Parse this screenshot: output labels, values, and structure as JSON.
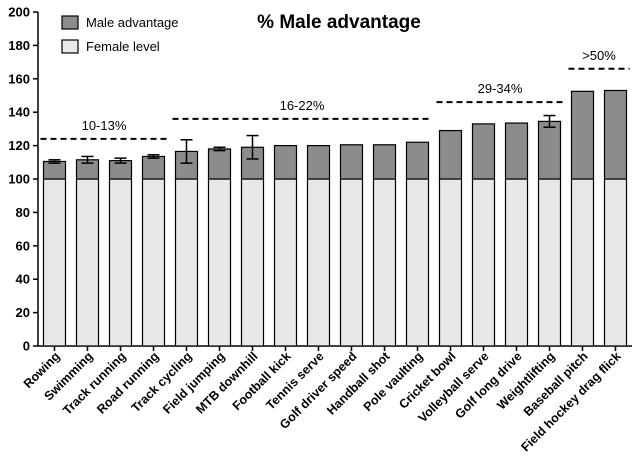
{
  "chart_data": {
    "type": "bar",
    "stacked": true,
    "title": "% Male advantage",
    "ylim": [
      0,
      200
    ],
    "yticks": [
      0,
      20,
      40,
      60,
      80,
      100,
      120,
      140,
      160,
      180,
      200
    ],
    "categories": [
      "Rowing",
      "Swimming",
      "Track running",
      "Road running",
      "Track cycling",
      "Field jumping",
      "MTB downhill",
      "Football kick",
      "Tennis serve",
      "Golf driver speed",
      "Handball shot",
      "Pole vaulting",
      "Cricket bowl",
      "Volleyball serve",
      "Golf long drive",
      "Weightlifting",
      "Baseball pitch",
      "Field hockey drag flick"
    ],
    "series": [
      {
        "name": "Female level",
        "color": "#e8e8e8",
        "values": [
          100,
          100,
          100,
          100,
          100,
          100,
          100,
          100,
          100,
          100,
          100,
          100,
          100,
          100,
          100,
          100,
          100,
          100
        ]
      },
      {
        "name": "Male advantage",
        "color": "#8c8c8c",
        "values": [
          10.5,
          11.5,
          11,
          13.5,
          16.5,
          18,
          19,
          20,
          20,
          20.5,
          20.5,
          22,
          29,
          33,
          33.5,
          34.5,
          52.5,
          53
        ]
      }
    ],
    "error_bars": [
      1,
      2,
      1.5,
      1,
      7,
      1,
      7,
      null,
      null,
      null,
      null,
      null,
      null,
      null,
      null,
      3.5,
      null,
      null
    ],
    "legend": {
      "position": "top-left",
      "entries": [
        "Male advantage",
        "Female level"
      ]
    },
    "brackets": [
      {
        "label": "10-13%",
        "from": "Rowing",
        "to": "Road running",
        "y": 124
      },
      {
        "label": "16-22%",
        "from": "Track cycling",
        "to": "Pole vaulting",
        "y": 136
      },
      {
        "label": "29-34%",
        "from": "Cricket bowl",
        "to": "Weightlifting",
        "y": 146
      },
      {
        "label": ">50%",
        "from": "Baseball pitch",
        "to": "Field hockey drag flick",
        "y": 166
      }
    ],
    "grid": false
  }
}
